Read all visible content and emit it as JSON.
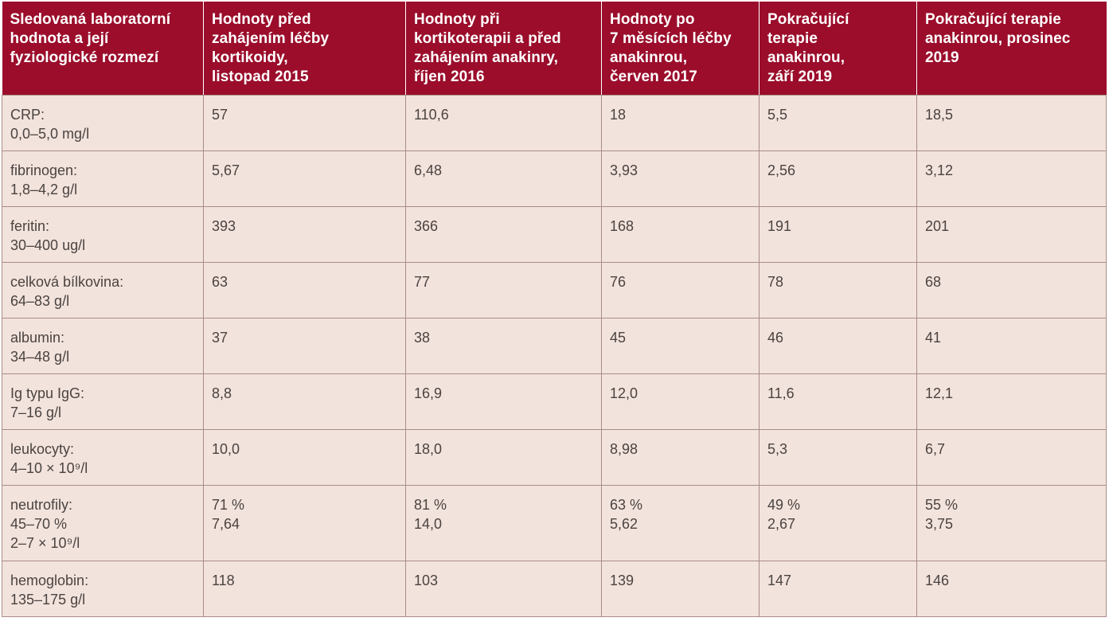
{
  "headers": [
    "Sledovaná laboratorní\nhodnota a její\nfyziologické rozmezí",
    "Hodnoty před\nzahájením léčby\nkortikoidy,\nlistopad 2015",
    "Hodnoty při\nkortikoterapii a před\nzahájením anakinry,\n říjen 2016",
    "Hodnoty po\n7 měsících léčby\nanakinrou,\nčerven 2017",
    "Pokračující\nterapie\nanakinrou,\nzáří 2019",
    "Pokračující terapie\nanakinrou, prosinec\n2019"
  ],
  "rows": [
    {
      "label": [
        "CRP:",
        "0,0–5,0 mg/l"
      ],
      "values": [
        [
          "57"
        ],
        [
          "110,6"
        ],
        [
          "18"
        ],
        [
          "5,5"
        ],
        [
          "18,5"
        ]
      ]
    },
    {
      "label": [
        "fibrinogen:",
        "1,8–4,2 g/l"
      ],
      "values": [
        [
          "5,67"
        ],
        [
          "6,48"
        ],
        [
          "3,93"
        ],
        [
          "2,56"
        ],
        [
          "3,12"
        ]
      ]
    },
    {
      "label": [
        "feritin:",
        "30–400 ug/l"
      ],
      "values": [
        [
          "393"
        ],
        [
          "366"
        ],
        [
          "168"
        ],
        [
          "191"
        ],
        [
          "201"
        ]
      ]
    },
    {
      "label": [
        "celková bílkovina:",
        "64–83 g/l"
      ],
      "values": [
        [
          "63"
        ],
        [
          "77"
        ],
        [
          "76"
        ],
        [
          "78"
        ],
        [
          "68"
        ]
      ]
    },
    {
      "label": [
        "albumin:",
        "34–48 g/l"
      ],
      "values": [
        [
          "37"
        ],
        [
          "38"
        ],
        [
          "45"
        ],
        [
          "46"
        ],
        [
          "41"
        ]
      ]
    },
    {
      "label": [
        "Ig typu IgG:",
        "7–16 g/l"
      ],
      "values": [
        [
          "8,8"
        ],
        [
          "16,9"
        ],
        [
          "12,0"
        ],
        [
          "11,6"
        ],
        [
          "12,1"
        ]
      ]
    },
    {
      "label": [
        "leukocyty:",
        "4–10 × 10⁹/l"
      ],
      "values": [
        [
          "10,0"
        ],
        [
          "18,0"
        ],
        [
          "8,98"
        ],
        [
          "5,3"
        ],
        [
          "6,7"
        ]
      ]
    },
    {
      "label": [
        "neutrofily:",
        "45–70 %",
        "2–7 × 10⁹/l"
      ],
      "values": [
        [
          "71 %",
          "7,64"
        ],
        [
          "81 %",
          "14,0"
        ],
        [
          "63 %",
          "5,62"
        ],
        [
          "49 %",
          "2,67"
        ],
        [
          "55 %",
          "3,75"
        ]
      ]
    },
    {
      "label": [
        "hemoglobin:",
        "135–175 g/l"
      ],
      "values": [
        [
          "118"
        ],
        [
          "103"
        ],
        [
          "139"
        ],
        [
          "147"
        ],
        [
          "146"
        ]
      ]
    }
  ],
  "colors": {
    "header_bg": "#9b0d2b",
    "header_text": "#ffffff",
    "cell_bg": "#f3e3dd",
    "cell_text": "#4a4340",
    "border": "#a88c86"
  }
}
